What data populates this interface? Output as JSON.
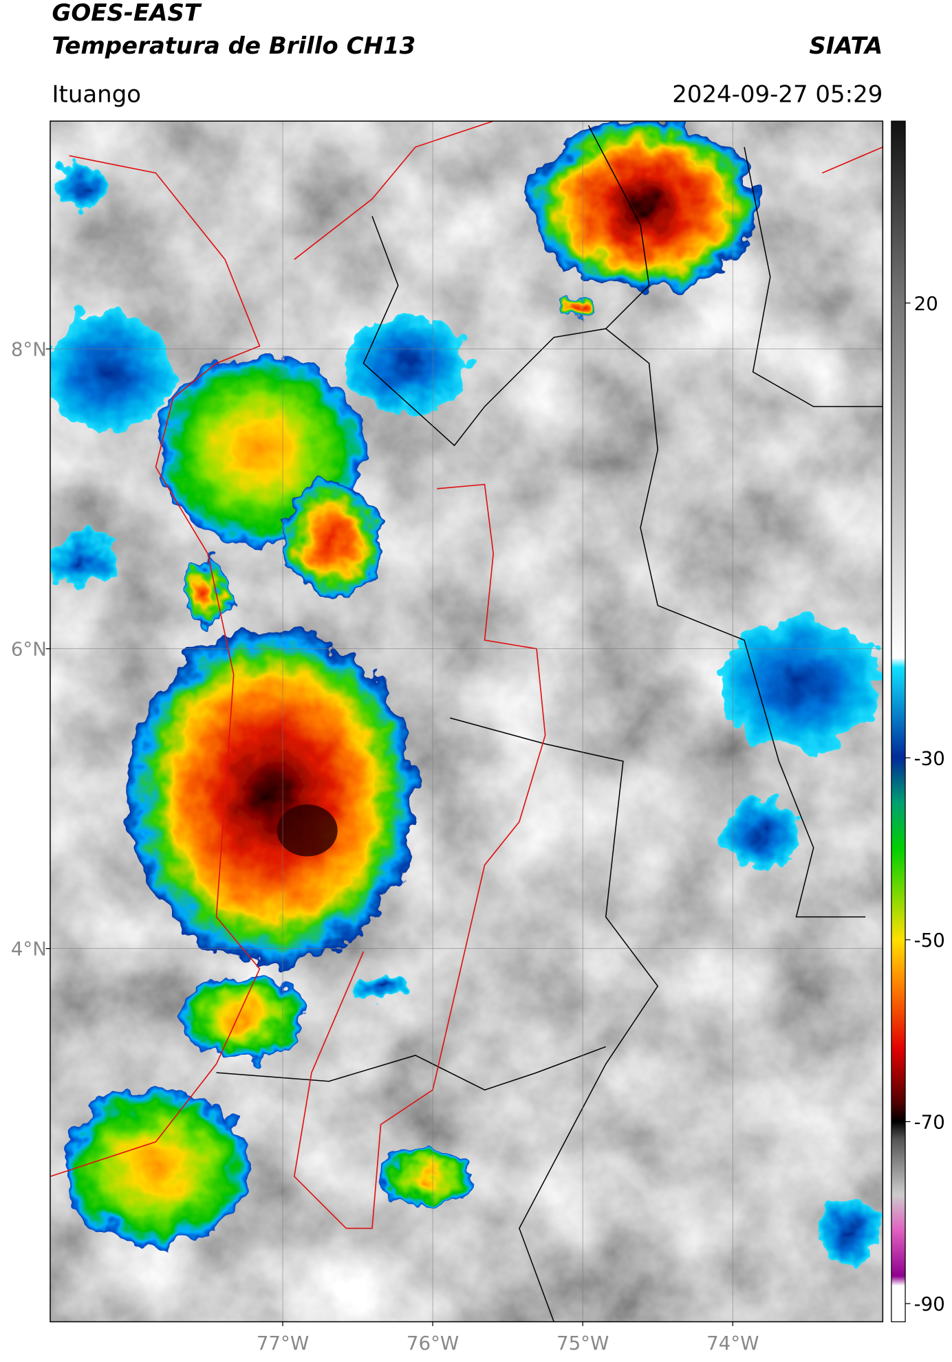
{
  "header": {
    "title": "GOES-EAST",
    "subtitle": "Temperatura de Brillo CH13",
    "source": "SIATA",
    "location": "Ituango",
    "datetime": "2024-09-27 05:29"
  },
  "map": {
    "xlim": [
      -78.55,
      -73.0
    ],
    "ylim": [
      1.51,
      9.52
    ],
    "xticks": [
      {
        "value": -77,
        "label": "77°W"
      },
      {
        "value": -76,
        "label": "76°W"
      },
      {
        "value": -75,
        "label": "75°W"
      },
      {
        "value": -74,
        "label": "74°W"
      }
    ],
    "yticks": [
      {
        "value": 8,
        "label": "8°N"
      },
      {
        "value": 6,
        "label": "6°N"
      },
      {
        "value": 4,
        "label": "4°N"
      }
    ],
    "grid": true
  },
  "colorbar": {
    "lim": [
      -92,
      40
    ],
    "ticks": [
      20,
      -30,
      -50,
      -70,
      -90
    ]
  }
}
